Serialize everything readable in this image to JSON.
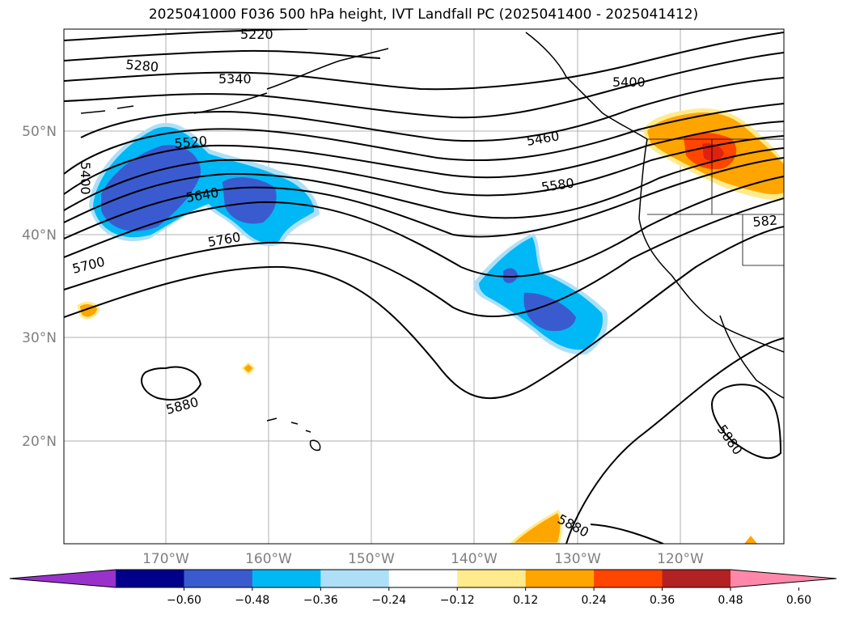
{
  "title": "2025041000 F036 500 hPa height, IVT Landfall PC (2025041400 - 2025041412)",
  "map": {
    "lat_labels": [
      "50°N",
      "40°N",
      "30°N",
      "20°N"
    ],
    "lon_labels": [
      "170°W",
      "160°W",
      "150°W",
      "140°W",
      "130°W",
      "120°W"
    ],
    "contour_labels": [
      "5220",
      "5280",
      "5340",
      "5400",
      "5400",
      "5460",
      "5520",
      "5580",
      "5640",
      "5700",
      "5760",
      "5880",
      "5880",
      "5880",
      "582"
    ],
    "colors": {
      "dark_blue": "#3a5bd0",
      "blue": "#00b8f5",
      "light_blue": "#ade0f8",
      "yellow": "#ffeb8c",
      "orange": "#ffa500",
      "red_orange": "#ff4500",
      "contour": "#000000"
    }
  },
  "colorbar": {
    "ticks": [
      "−0.60",
      "−0.48",
      "−0.36",
      "−0.24",
      "−0.12",
      "0.12",
      "0.24",
      "0.36",
      "0.48",
      "0.60"
    ],
    "colors": [
      "#9932cc",
      "#00008b",
      "#3a5bd0",
      "#00b8f5",
      "#ade0f8",
      "#ffffff",
      "#ffeb8c",
      "#ffa500",
      "#ff4500",
      "#b22222",
      "#ff88aa"
    ]
  }
}
